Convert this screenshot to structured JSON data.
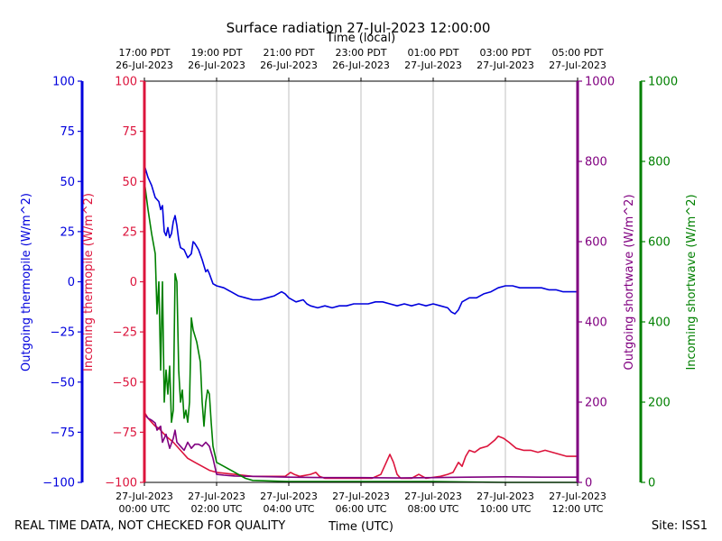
{
  "chart_data": {
    "type": "line",
    "title": "Surface radiation 27-Jul-2023 12:00:00",
    "top_axis_label": "Time (local)",
    "bottom_axis_label": "Time (UTC)",
    "footer_left": "REAL TIME DATA, NOT CHECKED FOR QUALITY",
    "footer_right": "Site: ISS1",
    "grid": "vertical",
    "colors": {
      "outgoing_thermopile": "#0000dd",
      "incoming_thermopile": "#dc143c",
      "outgoing_shortwave": "#800080",
      "incoming_shortwave": "#008000"
    },
    "axes": {
      "outgoing_thermopile": {
        "label": "Outgoing thermopile (W/m^2)",
        "range": [
          -100,
          100
        ],
        "ticks": [
          "100",
          "75",
          "50",
          "25",
          "0",
          "−25",
          "−50",
          "−75",
          "−100"
        ]
      },
      "incoming_thermopile": {
        "label": "Incoming thermopile (W/m^2)",
        "range": [
          -100,
          100
        ],
        "ticks": [
          "100",
          "75",
          "50",
          "25",
          "0",
          "−25",
          "−50",
          "−75",
          "−100"
        ]
      },
      "outgoing_shortwave": {
        "label": "Outgoing shortwave (W/m^2)",
        "range": [
          0,
          1000
        ],
        "ticks": [
          "1000",
          "800",
          "600",
          "400",
          "200",
          "0"
        ]
      },
      "incoming_shortwave": {
        "label": "Incoming shortwave (W/m^2)",
        "range": [
          0,
          1000
        ],
        "ticks": [
          "1000",
          "800",
          "600",
          "400",
          "200",
          "0"
        ]
      }
    },
    "x_range": [
      0,
      12
    ],
    "x_ticks_utc": [
      {
        "l1": "27-Jul-2023",
        "l2": "00:00 UTC"
      },
      {
        "l1": "27-Jul-2023",
        "l2": "02:00 UTC"
      },
      {
        "l1": "27-Jul-2023",
        "l2": "04:00 UTC"
      },
      {
        "l1": "27-Jul-2023",
        "l2": "06:00 UTC"
      },
      {
        "l1": "27-Jul-2023",
        "l2": "08:00 UTC"
      },
      {
        "l1": "27-Jul-2023",
        "l2": "10:00 UTC"
      },
      {
        "l1": "27-Jul-2023",
        "l2": "12:00 UTC"
      }
    ],
    "x_ticks_local": [
      {
        "l1": "17:00 PDT",
        "l2": "26-Jul-2023"
      },
      {
        "l1": "19:00 PDT",
        "l2": "26-Jul-2023"
      },
      {
        "l1": "21:00 PDT",
        "l2": "26-Jul-2023"
      },
      {
        "l1": "23:00 PDT",
        "l2": "26-Jul-2023"
      },
      {
        "l1": "01:00 PDT",
        "l2": "27-Jul-2023"
      },
      {
        "l1": "03:00 PDT",
        "l2": "27-Jul-2023"
      },
      {
        "l1": "05:00 PDT",
        "l2": "27-Jul-2023"
      }
    ],
    "series": [
      {
        "key": "outgoing_thermopile",
        "axis": "outgoing_thermopile",
        "points": [
          [
            0,
            58
          ],
          [
            0.05,
            55
          ],
          [
            0.1,
            52
          ],
          [
            0.2,
            48
          ],
          [
            0.3,
            42
          ],
          [
            0.4,
            40
          ],
          [
            0.45,
            36
          ],
          [
            0.5,
            38
          ],
          [
            0.55,
            25
          ],
          [
            0.6,
            23
          ],
          [
            0.65,
            27
          ],
          [
            0.7,
            22
          ],
          [
            0.75,
            24
          ],
          [
            0.8,
            30
          ],
          [
            0.85,
            33
          ],
          [
            0.9,
            28
          ],
          [
            0.95,
            21
          ],
          [
            1.0,
            17
          ],
          [
            1.1,
            16
          ],
          [
            1.2,
            12
          ],
          [
            1.3,
            14
          ],
          [
            1.35,
            20
          ],
          [
            1.4,
            19
          ],
          [
            1.5,
            16
          ],
          [
            1.6,
            11
          ],
          [
            1.65,
            8
          ],
          [
            1.7,
            5
          ],
          [
            1.75,
            6
          ],
          [
            1.8,
            4
          ],
          [
            1.9,
            -1
          ],
          [
            2.0,
            -2
          ],
          [
            2.2,
            -3
          ],
          [
            2.4,
            -5
          ],
          [
            2.6,
            -7
          ],
          [
            2.8,
            -8
          ],
          [
            3.0,
            -9
          ],
          [
            3.2,
            -9
          ],
          [
            3.4,
            -8
          ],
          [
            3.6,
            -7
          ],
          [
            3.8,
            -5
          ],
          [
            3.9,
            -6
          ],
          [
            4.0,
            -8
          ],
          [
            4.2,
            -10
          ],
          [
            4.4,
            -9
          ],
          [
            4.5,
            -11
          ],
          [
            4.6,
            -12
          ],
          [
            4.8,
            -13
          ],
          [
            5.0,
            -12
          ],
          [
            5.2,
            -13
          ],
          [
            5.4,
            -12
          ],
          [
            5.6,
            -12
          ],
          [
            5.8,
            -11
          ],
          [
            6.0,
            -11
          ],
          [
            6.2,
            -11
          ],
          [
            6.4,
            -10
          ],
          [
            6.6,
            -10
          ],
          [
            6.8,
            -11
          ],
          [
            7.0,
            -12
          ],
          [
            7.2,
            -11
          ],
          [
            7.4,
            -12
          ],
          [
            7.6,
            -11
          ],
          [
            7.8,
            -12
          ],
          [
            8.0,
            -11
          ],
          [
            8.2,
            -12
          ],
          [
            8.4,
            -13
          ],
          [
            8.5,
            -15
          ],
          [
            8.6,
            -16
          ],
          [
            8.7,
            -14
          ],
          [
            8.8,
            -10
          ],
          [
            9.0,
            -8
          ],
          [
            9.2,
            -8
          ],
          [
            9.4,
            -6
          ],
          [
            9.6,
            -5
          ],
          [
            9.8,
            -3
          ],
          [
            10.0,
            -2
          ],
          [
            10.2,
            -2
          ],
          [
            10.4,
            -3
          ],
          [
            10.6,
            -3
          ],
          [
            10.8,
            -3
          ],
          [
            11.0,
            -3
          ],
          [
            11.2,
            -4
          ],
          [
            11.4,
            -4
          ],
          [
            11.6,
            -5
          ],
          [
            11.8,
            -5
          ],
          [
            12.0,
            -5
          ]
        ]
      },
      {
        "key": "incoming_thermopile",
        "axis": "incoming_thermopile",
        "points": [
          [
            0,
            -65
          ],
          [
            0.1,
            -68
          ],
          [
            0.2,
            -70
          ],
          [
            0.3,
            -72
          ],
          [
            0.4,
            -73
          ],
          [
            0.5,
            -75
          ],
          [
            0.6,
            -77
          ],
          [
            0.8,
            -80
          ],
          [
            1.0,
            -84
          ],
          [
            1.2,
            -88
          ],
          [
            1.4,
            -90
          ],
          [
            1.6,
            -92
          ],
          [
            1.8,
            -94
          ],
          [
            2.0,
            -95
          ],
          [
            2.5,
            -96
          ],
          [
            3.0,
            -97
          ],
          [
            3.5,
            -97
          ],
          [
            3.9,
            -97
          ],
          [
            4.05,
            -95
          ],
          [
            4.15,
            -96
          ],
          [
            4.3,
            -97
          ],
          [
            4.6,
            -96
          ],
          [
            4.75,
            -95
          ],
          [
            4.85,
            -97
          ],
          [
            5.0,
            -98
          ],
          [
            5.5,
            -98
          ],
          [
            6.0,
            -98
          ],
          [
            6.3,
            -98
          ],
          [
            6.55,
            -96
          ],
          [
            6.7,
            -90
          ],
          [
            6.8,
            -86
          ],
          [
            6.9,
            -90
          ],
          [
            7.0,
            -96
          ],
          [
            7.1,
            -98
          ],
          [
            7.4,
            -98
          ],
          [
            7.6,
            -96
          ],
          [
            7.8,
            -98
          ],
          [
            8.2,
            -97
          ],
          [
            8.4,
            -96
          ],
          [
            8.55,
            -95
          ],
          [
            8.7,
            -90
          ],
          [
            8.8,
            -92
          ],
          [
            8.9,
            -87
          ],
          [
            9.0,
            -84
          ],
          [
            9.15,
            -85
          ],
          [
            9.3,
            -83
          ],
          [
            9.5,
            -82
          ],
          [
            9.7,
            -79
          ],
          [
            9.8,
            -77
          ],
          [
            9.95,
            -78
          ],
          [
            10.1,
            -80
          ],
          [
            10.3,
            -83
          ],
          [
            10.5,
            -84
          ],
          [
            10.7,
            -84
          ],
          [
            10.9,
            -85
          ],
          [
            11.1,
            -84
          ],
          [
            11.3,
            -85
          ],
          [
            11.5,
            -86
          ],
          [
            11.7,
            -87
          ],
          [
            11.9,
            -87
          ],
          [
            12.0,
            -87
          ]
        ]
      },
      {
        "key": "outgoing_shortwave",
        "axis": "outgoing_shortwave",
        "points": [
          [
            0,
            170
          ],
          [
            0.1,
            160
          ],
          [
            0.2,
            155
          ],
          [
            0.3,
            148
          ],
          [
            0.35,
            130
          ],
          [
            0.45,
            140
          ],
          [
            0.5,
            100
          ],
          [
            0.6,
            120
          ],
          [
            0.7,
            85
          ],
          [
            0.8,
            110
          ],
          [
            0.85,
            130
          ],
          [
            0.9,
            100
          ],
          [
            1.0,
            90
          ],
          [
            1.1,
            80
          ],
          [
            1.2,
            100
          ],
          [
            1.3,
            85
          ],
          [
            1.4,
            95
          ],
          [
            1.5,
            95
          ],
          [
            1.6,
            90
          ],
          [
            1.7,
            100
          ],
          [
            1.8,
            90
          ],
          [
            1.9,
            60
          ],
          [
            2.0,
            20
          ],
          [
            2.2,
            18
          ],
          [
            2.5,
            16
          ],
          [
            3.0,
            15
          ],
          [
            4.0,
            13
          ],
          [
            5.0,
            12
          ],
          [
            6.0,
            12
          ],
          [
            7.0,
            11
          ],
          [
            8.0,
            12
          ],
          [
            9.0,
            13
          ],
          [
            10.0,
            14
          ],
          [
            11.0,
            13
          ],
          [
            12.0,
            13
          ]
        ]
      },
      {
        "key": "incoming_shortwave",
        "axis": "incoming_shortwave",
        "points": [
          [
            0,
            750
          ],
          [
            0.1,
            680
          ],
          [
            0.2,
            620
          ],
          [
            0.3,
            570
          ],
          [
            0.35,
            420
          ],
          [
            0.4,
            500
          ],
          [
            0.45,
            280
          ],
          [
            0.5,
            500
          ],
          [
            0.55,
            200
          ],
          [
            0.6,
            280
          ],
          [
            0.65,
            220
          ],
          [
            0.7,
            290
          ],
          [
            0.75,
            150
          ],
          [
            0.8,
            180
          ],
          [
            0.85,
            520
          ],
          [
            0.9,
            500
          ],
          [
            0.95,
            280
          ],
          [
            1.0,
            200
          ],
          [
            1.05,
            230
          ],
          [
            1.1,
            160
          ],
          [
            1.15,
            180
          ],
          [
            1.2,
            150
          ],
          [
            1.25,
            200
          ],
          [
            1.3,
            410
          ],
          [
            1.35,
            380
          ],
          [
            1.45,
            350
          ],
          [
            1.55,
            300
          ],
          [
            1.6,
            200
          ],
          [
            1.65,
            140
          ],
          [
            1.7,
            200
          ],
          [
            1.75,
            230
          ],
          [
            1.8,
            220
          ],
          [
            1.85,
            150
          ],
          [
            1.9,
            90
          ],
          [
            2.0,
            50
          ],
          [
            2.2,
            40
          ],
          [
            2.4,
            30
          ],
          [
            2.6,
            20
          ],
          [
            2.8,
            10
          ],
          [
            3.0,
            5
          ],
          [
            4.0,
            2
          ],
          [
            6.0,
            2
          ],
          [
            8.0,
            2
          ],
          [
            10.0,
            0
          ],
          [
            12.0,
            0
          ]
        ]
      }
    ]
  }
}
